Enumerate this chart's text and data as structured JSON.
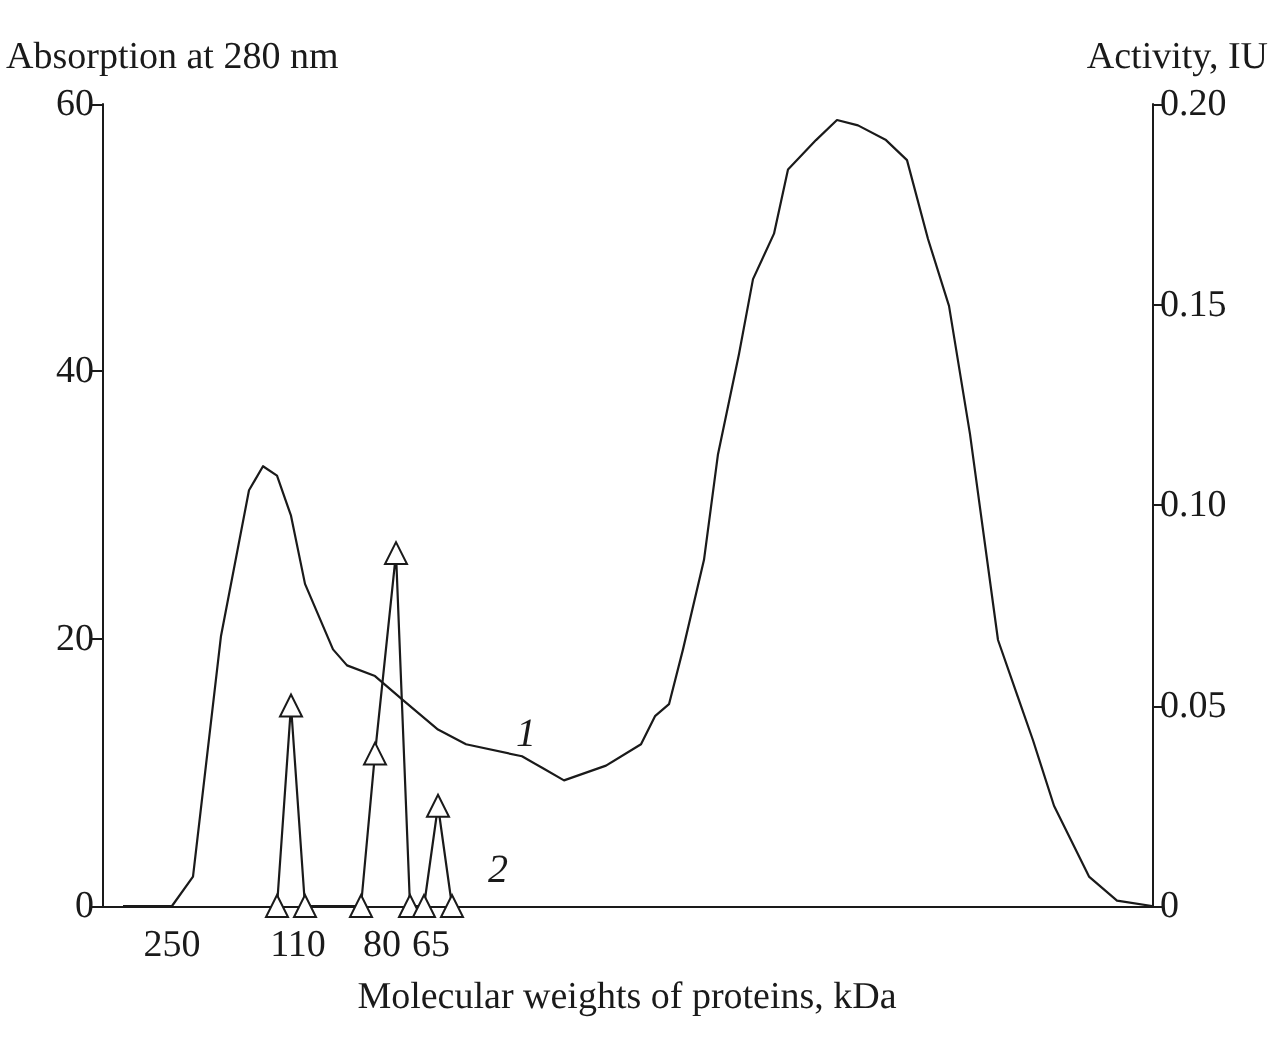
{
  "chart_data": {
    "type": "line",
    "xlabel": "Molecular weights of proteins, kDa",
    "ylabel": "Absorption at 280 nm",
    "y2label": "Activity, IU",
    "categories": [
      null,
      null,
      null,
      null,
      null,
      null,
      null,
      null,
      null,
      null,
      "250",
      null,
      null,
      null,
      null,
      null,
      null,
      null,
      null,
      null,
      null,
      null,
      null,
      null,
      null,
      null,
      null,
      null,
      "110",
      null,
      null,
      null,
      null,
      null,
      null,
      null,
      null,
      null,
      null,
      null,
      "80",
      null,
      null,
      null,
      null,
      null,
      null,
      "65",
      null,
      null,
      null,
      null,
      null,
      null,
      null,
      null,
      null,
      null,
      null,
      null,
      null,
      null,
      null,
      null,
      null,
      null,
      null,
      null,
      null,
      null,
      null,
      null,
      null,
      null,
      null,
      null,
      null,
      null,
      null,
      null,
      null,
      null,
      null,
      null,
      null,
      null,
      null,
      null,
      null,
      null,
      null,
      null,
      null,
      null,
      null,
      null,
      null,
      null,
      null,
      null,
      null,
      null,
      null,
      null,
      null,
      null,
      null,
      null,
      null,
      null,
      null,
      null,
      null,
      null,
      null,
      null,
      null,
      null,
      null,
      null,
      null,
      null,
      null,
      null,
      null,
      null,
      null,
      null,
      null,
      null,
      null,
      null,
      null,
      null,
      null,
      null,
      null,
      null,
      null,
      null,
      null,
      null,
      null,
      null,
      null,
      null,
      null,
      null,
      null,
      null,
      null
    ],
    "ylim": [
      0,
      60
    ],
    "yticks": [
      0,
      20,
      40,
      60
    ],
    "y2lim": [
      0,
      0.2
    ],
    "y2ticks": [
      0,
      0.05,
      {
        "value": 0.1,
        "label": "0.10"
      },
      0.15,
      {
        "value": 0.2,
        "label": "0.20"
      }
    ],
    "grid": false,
    "series": [
      {
        "color": "#1a1a1a",
        "marker": "none",
        "values": [
          null,
          null,
          null,
          0,
          null,
          null,
          null,
          null,
          null,
          null,
          0,
          null,
          null,
          2.2,
          null,
          null,
          null,
          20.2,
          null,
          null,
          null,
          31.1,
          null,
          32.9,
          null,
          32.2,
          null,
          29.2,
          null,
          24.1,
          null,
          null,
          null,
          19.2,
          null,
          18.0,
          null,
          null,
          null,
          17.2,
          null,
          null,
          null,
          15.4,
          null,
          null,
          null,
          null,
          13.2,
          null,
          null,
          null,
          12.1,
          null,
          null,
          null,
          null,
          null,
          null,
          null,
          11.2,
          null,
          null,
          10.3,
          null,
          null,
          9.4,
          null,
          null,
          null,
          null,
          null,
          10.5,
          null,
          null,
          null,
          null,
          12.1,
          null,
          14.2,
          null,
          15.1,
          null,
          19.2,
          null,
          null,
          25.9,
          null,
          33.8,
          null,
          null,
          41.3,
          null,
          46.9,
          null,
          null,
          50.3,
          null,
          55.1,
          null,
          null,
          null,
          57.3,
          null,
          null,
          58.8,
          null,
          null,
          58.4,
          null,
          null,
          null,
          57.3,
          null,
          null,
          55.8,
          null,
          null,
          49.9,
          null,
          null,
          44.9,
          null,
          null,
          35.3,
          null,
          null,
          null,
          19.9,
          null,
          null,
          null,
          null,
          12.4,
          null,
          null,
          7.5,
          null,
          null,
          null,
          null,
          2.2,
          null,
          null,
          null,
          0.4,
          null,
          null,
          null,
          null,
          0
        ]
      },
      {
        "color": "#1a1a1a",
        "marker": "triangle",
        "axis": "y2",
        "values": [
          null,
          null,
          null,
          null,
          null,
          null,
          null,
          null,
          null,
          null,
          null,
          null,
          null,
          null,
          null,
          null,
          null,
          null,
          null,
          null,
          null,
          null,
          null,
          null,
          null,
          0,
          null,
          0.05,
          null,
          0,
          null,
          null,
          null,
          null,
          null,
          null,
          null,
          0,
          null,
          0.038,
          null,
          null,
          0.088,
          null,
          0,
          null,
          0,
          null,
          0.025,
          null,
          0,
          null,
          null,
          null,
          null,
          null,
          null,
          null,
          null,
          null,
          null,
          null,
          null,
          null,
          null,
          null,
          null,
          null,
          null,
          null,
          null,
          null,
          null,
          null,
          null,
          null,
          null,
          null,
          null,
          null,
          null,
          null,
          null,
          null,
          null,
          null,
          null,
          null,
          null,
          null,
          null,
          null,
          null,
          null,
          null,
          null,
          null,
          null,
          null,
          null,
          null,
          null,
          null,
          null,
          null,
          null,
          null,
          null,
          null,
          null,
          null,
          null,
          null,
          null,
          null,
          null,
          null,
          null,
          null,
          null,
          null,
          null,
          null,
          null,
          null,
          null,
          null,
          null,
          null,
          null,
          null,
          null,
          null,
          null,
          null,
          null,
          null,
          null,
          null,
          null,
          null,
          null,
          null,
          null,
          null,
          null,
          null,
          null,
          null,
          null,
          null
        ]
      }
    ],
    "annotations": [
      "1",
      "2"
    ]
  }
}
